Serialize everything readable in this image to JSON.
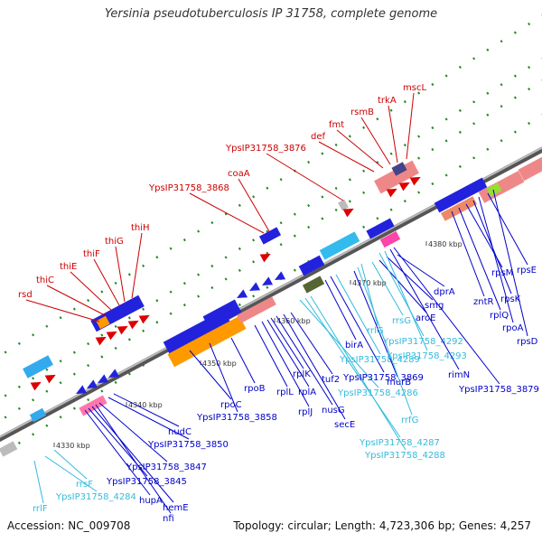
{
  "title": "Yersinia pseudotuberculosis IP 31758, complete genome",
  "footer": {
    "accession": "Accession: NC_009708",
    "summary": "Topology: circular; Length: 4,723,306 bp; Genes: 4,257"
  },
  "colors": {
    "top_label": "#cc0000",
    "bottom_label": "#0000cc",
    "rna_label": "#33bbdd",
    "backbone": "#888888",
    "tick_mark": "#228822"
  },
  "ticks": [
    {
      "label": "4330 kbp"
    },
    {
      "label": "4340 kbp"
    },
    {
      "label": "4350 kbp"
    },
    {
      "label": "4360 kbp"
    },
    {
      "label": "4370 kbp"
    },
    {
      "label": "4380 kbp"
    }
  ],
  "top_genes": [
    "rsd",
    "thiC",
    "thiE",
    "thiF",
    "thiG",
    "thiH",
    "YpsIP31758_3868",
    "coaA",
    "YpsIP31758_3876",
    "def",
    "fmt",
    "rsmB",
    "trkA",
    "mscL"
  ],
  "bottom_genes": [
    "rrlF",
    "YpsIP31758_4284",
    "rrsF",
    "hupA",
    "YpsIP31758_3845",
    "hemE",
    "nfi",
    "YpsIP31758_3847",
    "YpsIP31758_3850",
    "nudC",
    "rpoC",
    "YpsIP31758_3858",
    "rpoB",
    "rplL",
    "rplJ",
    "rplA",
    "rplK",
    "nusG",
    "secE",
    "tuf2",
    "YpsIP31758_4286",
    "YpsIP31758_4287",
    "YpsIP31758_4288",
    "birA",
    "YpsIP31758_3869",
    "YpsIP31758_4289",
    "murB",
    "rrfG",
    "rrlG",
    "rrsG",
    "aroE",
    "smg",
    "dprA",
    "YpsIP31758_4292",
    "YpsIP31758_4293",
    "rimN",
    "YpsIP31758_3879",
    "zntR",
    "rplQ",
    "rpsM",
    "rpsK",
    "rpoA",
    "rpsD",
    "rpsE"
  ]
}
